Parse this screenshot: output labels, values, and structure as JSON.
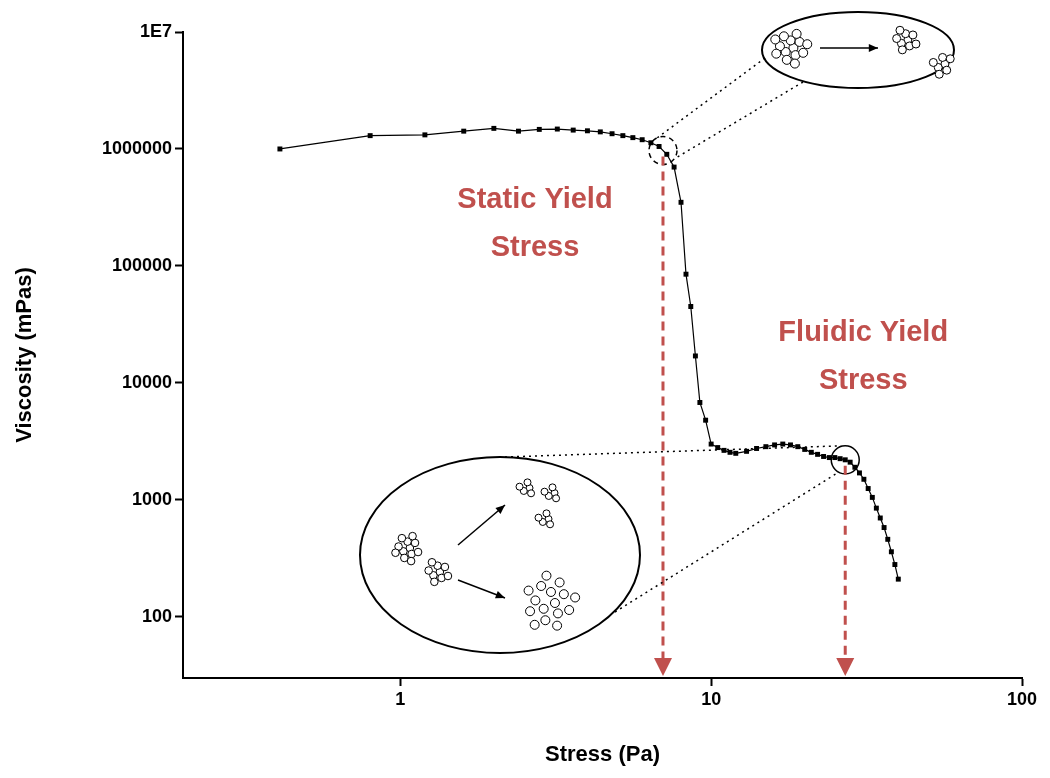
{
  "chart_data": {
    "type": "line",
    "x_label": "Stress (Pa)",
    "y_label": "Viscosity (mPas)",
    "log": true,
    "grid": false,
    "color": "#000000",
    "marker": "square",
    "x": [
      0.41,
      0.8,
      1.2,
      1.6,
      2.0,
      2.4,
      2.8,
      3.2,
      3.6,
      4.0,
      4.4,
      4.8,
      5.2,
      5.6,
      6.0,
      6.4,
      6.8,
      7.2,
      7.6,
      8.0,
      8.3,
      8.6,
      8.9,
      9.2,
      9.6,
      10,
      10.5,
      11,
      11.5,
      12,
      13,
      14,
      15,
      16,
      17,
      18,
      19,
      20,
      21,
      22,
      23,
      24,
      25,
      26,
      27,
      28,
      29,
      30,
      31,
      32,
      33,
      34,
      35,
      36,
      37,
      38,
      39,
      40
    ],
    "values": [
      1000000,
      1300000,
      1320000,
      1420000,
      1500000,
      1420000,
      1470000,
      1480000,
      1450000,
      1430000,
      1400000,
      1350000,
      1300000,
      1250000,
      1200000,
      1130000,
      1050000,
      900000,
      700000,
      350000,
      85000,
      45000,
      17000,
      6800,
      4800,
      3000,
      2800,
      2650,
      2550,
      2500,
      2600,
      2750,
      2850,
      2950,
      3000,
      2950,
      2850,
      2700,
      2550,
      2450,
      2350,
      2300,
      2300,
      2250,
      2200,
      2100,
      1900,
      1700,
      1500,
      1250,
      1050,
      850,
      700,
      580,
      460,
      360,
      280,
      210
    ],
    "xlim": [
      0.2,
      100
    ],
    "ylim": [
      30,
      10000000
    ],
    "xticks": [
      1,
      10,
      100
    ],
    "yticks": [
      100,
      1000,
      10000,
      100000,
      1000000,
      {
        "value": 10000000,
        "label": "1E7"
      }
    ],
    "annotations": [
      {
        "text": "Static Yield Stress",
        "x": 7,
        "color": "#c0504d"
      },
      {
        "text": "Fluidic Yield Stress",
        "x": 27,
        "color": "#c0504d"
      }
    ]
  }
}
